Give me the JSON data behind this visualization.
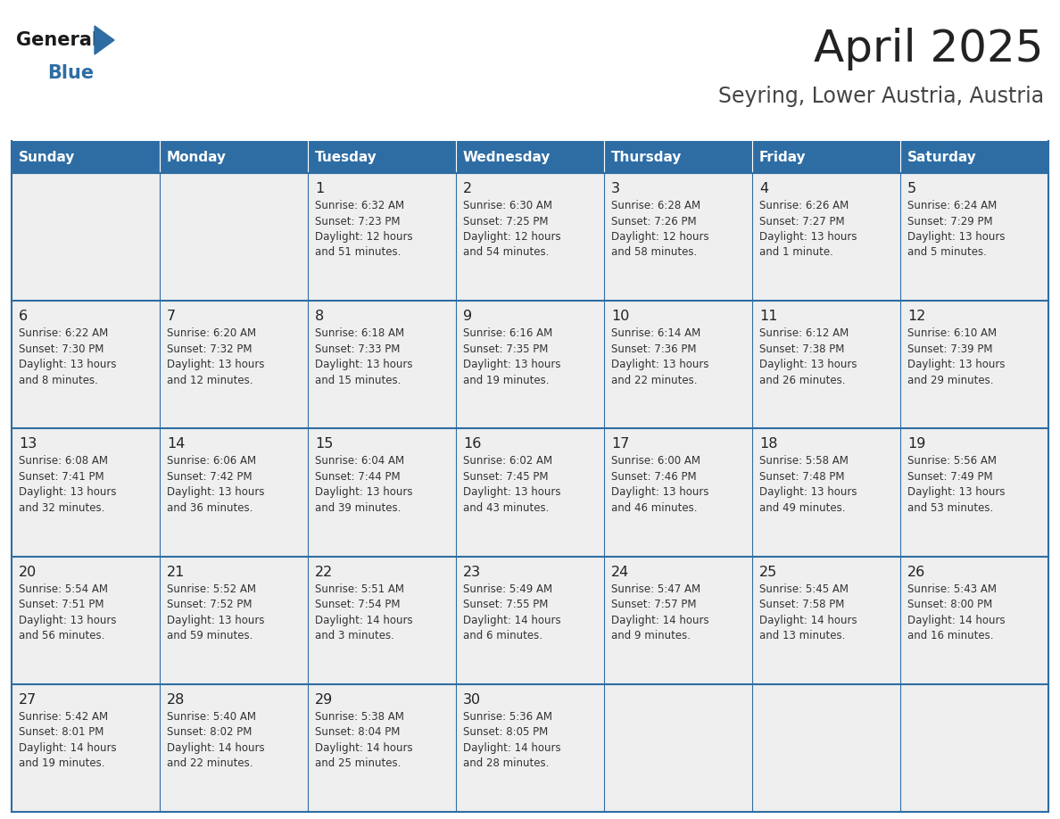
{
  "title": "April 2025",
  "subtitle": "Seyring, Lower Austria, Austria",
  "header_bg_color": "#2E6DA4",
  "header_text_color": "#FFFFFF",
  "cell_bg_color": "#EFEFEF",
  "border_color": "#2E6DA4",
  "text_color": "#333333",
  "day_num_color": "#222222",
  "logo_general_color": "#1a1a1a",
  "logo_blue_color": "#2E6DA4",
  "day_names": [
    "Sunday",
    "Monday",
    "Tuesday",
    "Wednesday",
    "Thursday",
    "Friday",
    "Saturday"
  ],
  "weeks": [
    [
      {
        "day": "",
        "info": ""
      },
      {
        "day": "",
        "info": ""
      },
      {
        "day": "1",
        "info": "Sunrise: 6:32 AM\nSunset: 7:23 PM\nDaylight: 12 hours\nand 51 minutes."
      },
      {
        "day": "2",
        "info": "Sunrise: 6:30 AM\nSunset: 7:25 PM\nDaylight: 12 hours\nand 54 minutes."
      },
      {
        "day": "3",
        "info": "Sunrise: 6:28 AM\nSunset: 7:26 PM\nDaylight: 12 hours\nand 58 minutes."
      },
      {
        "day": "4",
        "info": "Sunrise: 6:26 AM\nSunset: 7:27 PM\nDaylight: 13 hours\nand 1 minute."
      },
      {
        "day": "5",
        "info": "Sunrise: 6:24 AM\nSunset: 7:29 PM\nDaylight: 13 hours\nand 5 minutes."
      }
    ],
    [
      {
        "day": "6",
        "info": "Sunrise: 6:22 AM\nSunset: 7:30 PM\nDaylight: 13 hours\nand 8 minutes."
      },
      {
        "day": "7",
        "info": "Sunrise: 6:20 AM\nSunset: 7:32 PM\nDaylight: 13 hours\nand 12 minutes."
      },
      {
        "day": "8",
        "info": "Sunrise: 6:18 AM\nSunset: 7:33 PM\nDaylight: 13 hours\nand 15 minutes."
      },
      {
        "day": "9",
        "info": "Sunrise: 6:16 AM\nSunset: 7:35 PM\nDaylight: 13 hours\nand 19 minutes."
      },
      {
        "day": "10",
        "info": "Sunrise: 6:14 AM\nSunset: 7:36 PM\nDaylight: 13 hours\nand 22 minutes."
      },
      {
        "day": "11",
        "info": "Sunrise: 6:12 AM\nSunset: 7:38 PM\nDaylight: 13 hours\nand 26 minutes."
      },
      {
        "day": "12",
        "info": "Sunrise: 6:10 AM\nSunset: 7:39 PM\nDaylight: 13 hours\nand 29 minutes."
      }
    ],
    [
      {
        "day": "13",
        "info": "Sunrise: 6:08 AM\nSunset: 7:41 PM\nDaylight: 13 hours\nand 32 minutes."
      },
      {
        "day": "14",
        "info": "Sunrise: 6:06 AM\nSunset: 7:42 PM\nDaylight: 13 hours\nand 36 minutes."
      },
      {
        "day": "15",
        "info": "Sunrise: 6:04 AM\nSunset: 7:44 PM\nDaylight: 13 hours\nand 39 minutes."
      },
      {
        "day": "16",
        "info": "Sunrise: 6:02 AM\nSunset: 7:45 PM\nDaylight: 13 hours\nand 43 minutes."
      },
      {
        "day": "17",
        "info": "Sunrise: 6:00 AM\nSunset: 7:46 PM\nDaylight: 13 hours\nand 46 minutes."
      },
      {
        "day": "18",
        "info": "Sunrise: 5:58 AM\nSunset: 7:48 PM\nDaylight: 13 hours\nand 49 minutes."
      },
      {
        "day": "19",
        "info": "Sunrise: 5:56 AM\nSunset: 7:49 PM\nDaylight: 13 hours\nand 53 minutes."
      }
    ],
    [
      {
        "day": "20",
        "info": "Sunrise: 5:54 AM\nSunset: 7:51 PM\nDaylight: 13 hours\nand 56 minutes."
      },
      {
        "day": "21",
        "info": "Sunrise: 5:52 AM\nSunset: 7:52 PM\nDaylight: 13 hours\nand 59 minutes."
      },
      {
        "day": "22",
        "info": "Sunrise: 5:51 AM\nSunset: 7:54 PM\nDaylight: 14 hours\nand 3 minutes."
      },
      {
        "day": "23",
        "info": "Sunrise: 5:49 AM\nSunset: 7:55 PM\nDaylight: 14 hours\nand 6 minutes."
      },
      {
        "day": "24",
        "info": "Sunrise: 5:47 AM\nSunset: 7:57 PM\nDaylight: 14 hours\nand 9 minutes."
      },
      {
        "day": "25",
        "info": "Sunrise: 5:45 AM\nSunset: 7:58 PM\nDaylight: 14 hours\nand 13 minutes."
      },
      {
        "day": "26",
        "info": "Sunrise: 5:43 AM\nSunset: 8:00 PM\nDaylight: 14 hours\nand 16 minutes."
      }
    ],
    [
      {
        "day": "27",
        "info": "Sunrise: 5:42 AM\nSunset: 8:01 PM\nDaylight: 14 hours\nand 19 minutes."
      },
      {
        "day": "28",
        "info": "Sunrise: 5:40 AM\nSunset: 8:02 PM\nDaylight: 14 hours\nand 22 minutes."
      },
      {
        "day": "29",
        "info": "Sunrise: 5:38 AM\nSunset: 8:04 PM\nDaylight: 14 hours\nand 25 minutes."
      },
      {
        "day": "30",
        "info": "Sunrise: 5:36 AM\nSunset: 8:05 PM\nDaylight: 14 hours\nand 28 minutes."
      },
      {
        "day": "",
        "info": ""
      },
      {
        "day": "",
        "info": ""
      },
      {
        "day": "",
        "info": ""
      }
    ]
  ]
}
